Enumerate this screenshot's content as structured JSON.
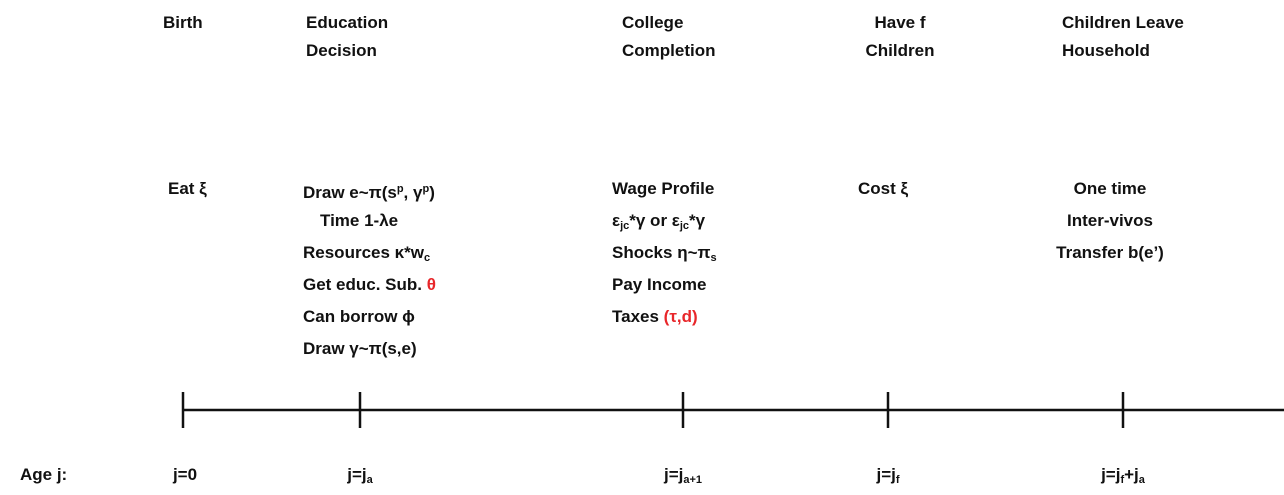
{
  "age_label": "Age j:",
  "columns": [
    {
      "header": [
        "Birth"
      ],
      "events": [
        [
          {
            "t": "Eat ξ"
          }
        ]
      ],
      "age": [
        {
          "t": "j=0"
        }
      ]
    },
    {
      "header": [
        "Education",
        "Decision"
      ],
      "events": [
        [
          {
            "t": "Draw e~π(s"
          },
          {
            "t": "p",
            "s": "sup"
          },
          {
            "t": ", γ"
          },
          {
            "t": "p",
            "s": "sup"
          },
          {
            "t": ")"
          }
        ],
        [
          {
            "t": "Time 1-λe"
          }
        ],
        [
          {
            "t": "Resources κ*w"
          },
          {
            "t": "c",
            "s": "sub"
          }
        ],
        [
          {
            "t": "Get educ. Sub. "
          },
          {
            "t": "θ",
            "color": "#e8262a"
          }
        ],
        [
          {
            "t": "Can borrow ϕ"
          }
        ],
        [
          {
            "t": "Draw γ~π(s,e)"
          }
        ]
      ],
      "age": [
        {
          "t": "j=j"
        },
        {
          "t": "a",
          "s": "sub"
        }
      ]
    },
    {
      "header": [
        "College",
        "Completion"
      ],
      "events": [
        [
          {
            "t": "Wage Profile"
          }
        ],
        [
          {
            "t": "ε"
          },
          {
            "t": "jc",
            "s": "sub"
          },
          {
            "t": "*γ or ε"
          },
          {
            "t": "jc",
            "s": "sub"
          },
          {
            "t": "*γ"
          }
        ],
        [
          {
            "t": "Shocks η~π"
          },
          {
            "t": "s",
            "s": "sub"
          }
        ],
        [
          {
            "t": "Pay Income"
          }
        ],
        [
          {
            "t": "Taxes "
          },
          {
            "t": "(τ,d)",
            "color": "#e8262a"
          }
        ]
      ],
      "age": [
        {
          "t": "j=j"
        },
        {
          "t": "a+1",
          "s": "sub"
        }
      ]
    },
    {
      "header": [
        "Have f",
        "Children"
      ],
      "events": [
        [
          {
            "t": "Cost ξ"
          }
        ]
      ],
      "age": [
        {
          "t": "j=j"
        },
        {
          "t": "f",
          "s": "sub"
        }
      ]
    },
    {
      "header": [
        "Children Leave",
        "Household"
      ],
      "events": [
        [
          {
            "t": "One time"
          }
        ],
        [
          {
            "t": "Inter-vivos"
          }
        ],
        [
          {
            "t": "Transfer b(e’)"
          }
        ]
      ],
      "age": [
        {
          "t": "j=j"
        },
        {
          "t": "f",
          "s": "sub"
        },
        {
          "t": "+j"
        },
        {
          "t": "a",
          "s": "sub"
        }
      ]
    }
  ]
}
